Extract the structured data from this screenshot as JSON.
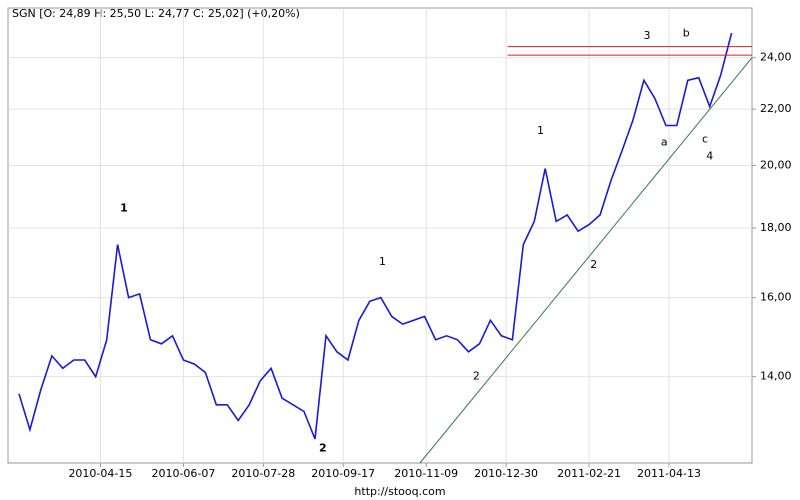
{
  "chart_data": {
    "type": "line",
    "title": "SGN [O: 24,89  H: 25,50  L: 24,77  C: 25,02]  (+0,20%)",
    "footer": "http://stooq.com",
    "log_scale": true,
    "grid": true,
    "color": "#1a1ad6",
    "x": [
      "2010-02-22",
      "2010-03-01",
      "2010-03-08",
      "2010-03-15",
      "2010-03-22",
      "2010-03-29",
      "2010-04-05",
      "2010-04-12",
      "2010-04-19",
      "2010-04-26",
      "2010-05-03",
      "2010-05-10",
      "2010-05-17",
      "2010-05-24",
      "2010-05-31",
      "2010-06-07",
      "2010-06-14",
      "2010-06-21",
      "2010-06-28",
      "2010-07-05",
      "2010-07-12",
      "2010-07-19",
      "2010-07-26",
      "2010-08-02",
      "2010-08-09",
      "2010-08-16",
      "2010-08-23",
      "2010-08-30",
      "2010-09-06",
      "2010-09-13",
      "2010-09-20",
      "2010-09-27",
      "2010-10-04",
      "2010-10-11",
      "2010-10-18",
      "2010-10-25",
      "2010-11-01",
      "2010-11-08",
      "2010-11-15",
      "2010-11-22",
      "2010-11-29",
      "2010-12-06",
      "2010-12-13",
      "2010-12-20",
      "2010-12-27",
      "2011-01-03",
      "2011-01-10",
      "2011-01-17",
      "2011-01-24",
      "2011-01-31",
      "2011-02-07",
      "2011-02-14",
      "2011-02-21",
      "2011-02-28",
      "2011-03-07",
      "2011-03-14",
      "2011-03-21",
      "2011-03-28",
      "2011-04-04",
      "2011-04-11",
      "2011-04-18",
      "2011-04-25",
      "2011-05-02",
      "2011-05-09",
      "2011-05-16",
      "2011-05-23"
    ],
    "values": [
      13.6,
      12.8,
      13.7,
      14.5,
      14.2,
      14.4,
      14.4,
      14.0,
      14.9,
      17.5,
      16.0,
      16.1,
      14.9,
      14.8,
      15.0,
      14.4,
      14.3,
      14.1,
      13.35,
      13.35,
      13.0,
      13.35,
      13.9,
      14.2,
      13.5,
      13.35,
      13.2,
      12.6,
      15.0,
      14.6,
      14.4,
      15.4,
      15.9,
      16.0,
      15.5,
      15.3,
      15.4,
      15.5,
      14.9,
      15.0,
      14.9,
      14.6,
      14.8,
      15.4,
      15.0,
      14.9,
      17.5,
      18.2,
      19.9,
      18.2,
      18.4,
      17.9,
      18.1,
      18.4,
      19.5,
      20.5,
      21.6,
      23.1,
      22.4,
      21.4,
      21.4,
      23.1,
      23.2,
      22.1,
      23.3,
      25.02
    ],
    "xlim": [
      "2010-02-15",
      "2011-06-05"
    ],
    "xticks": [
      "2010-04-15",
      "2010-06-07",
      "2010-07-28",
      "2010-09-17",
      "2010-11-09",
      "2010-12-30",
      "2011-02-21",
      "2011-04-13"
    ],
    "ylim": [
      12.1,
      26.1
    ],
    "yticks": [
      {
        "value": 14,
        "label": "14,00"
      },
      {
        "value": 16,
        "label": "16,00"
      },
      {
        "value": 18,
        "label": "18,00"
      },
      {
        "value": 20,
        "label": "20,00"
      },
      {
        "value": 22,
        "label": "22,00"
      },
      {
        "value": 24,
        "label": "24,00"
      }
    ],
    "lines": [
      {
        "color": "#d42020",
        "points": [
          [
            "2010-12-31",
            24.45
          ],
          [
            "2011-06-05",
            24.45
          ]
        ]
      },
      {
        "color": "#d42020",
        "points": [
          [
            "2010-12-31",
            24.1
          ],
          [
            "2011-06-05",
            24.1
          ]
        ]
      },
      {
        "color": "#2e7d4a",
        "points": [
          [
            "2010-11-05",
            12.1
          ],
          [
            "2011-06-05",
            24.0
          ]
        ]
      }
    ],
    "annotations": [
      {
        "text": "1",
        "x": "2010-04-30",
        "y": 18.6,
        "color": "#33ee55",
        "bold": true
      },
      {
        "text": "2",
        "x": "2010-09-04",
        "y": 12.4,
        "color": "#33ee55",
        "bold": true
      },
      {
        "text": "1",
        "x": "2010-10-12",
        "y": 17.0,
        "color": "#e03030",
        "bold": false
      },
      {
        "text": "2",
        "x": "2010-12-11",
        "y": 14.0,
        "color": "#e03030",
        "bold": false
      },
      {
        "text": "1",
        "x": "2011-01-21",
        "y": 21.2,
        "color": "#2e7d4a",
        "bold": false
      },
      {
        "text": "2",
        "x": "2011-02-24",
        "y": 16.9,
        "color": "#2e7d4a",
        "bold": false
      },
      {
        "text": "3",
        "x": "2011-03-30",
        "y": 24.9,
        "color": "#2e7d4a",
        "bold": false
      },
      {
        "text": "4",
        "x": "2011-05-09",
        "y": 20.3,
        "color": "#2e7d4a",
        "bold": false
      },
      {
        "text": "a",
        "x": "2011-04-10",
        "y": 20.8,
        "color": "#e03030",
        "bold": false
      },
      {
        "text": "b",
        "x": "2011-04-24",
        "y": 25.0,
        "color": "#e03030",
        "bold": false
      },
      {
        "text": "c",
        "x": "2011-05-06",
        "y": 20.9,
        "color": "#e03030",
        "bold": false
      }
    ]
  }
}
